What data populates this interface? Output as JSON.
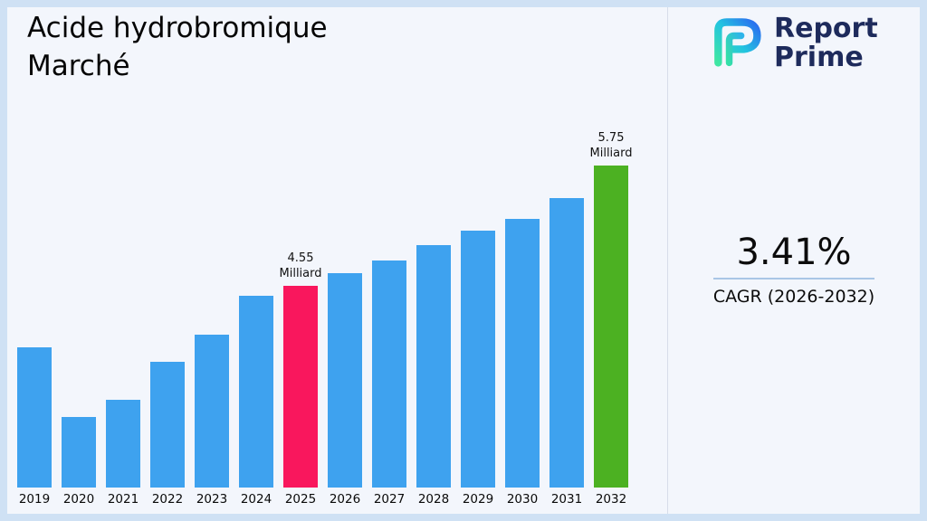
{
  "header": {
    "title_line1": "Acide hydrobromique",
    "title_line2": "Marché"
  },
  "logo": {
    "name_line1": "Report",
    "name_line2": "Prime",
    "brand_color": "#1e2b5c",
    "mark_gradient": [
      "#3ee6a3",
      "#23c4e0",
      "#2b6af0"
    ]
  },
  "stats": {
    "cagr_value": "3.41%",
    "cagr_label": "CAGR (2026-2032)"
  },
  "chart_data": {
    "type": "bar",
    "title": "Acide hydrobromique Marché",
    "categories": [
      "2019",
      "2020",
      "2021",
      "2022",
      "2023",
      "2024",
      "2025",
      "2026",
      "2027",
      "2028",
      "2029",
      "2030",
      "2031",
      "2032"
    ],
    "values": [
      3.93,
      3.24,
      3.41,
      3.79,
      4.06,
      4.45,
      4.55,
      4.67,
      4.8,
      4.95,
      5.1,
      5.22,
      5.42,
      5.75
    ],
    "unit": "Milliard",
    "annotations": [
      {
        "category": "2025",
        "value": "4.55",
        "unit": "Milliard"
      },
      {
        "category": "2032",
        "value": "5.75",
        "unit": "Milliard"
      }
    ],
    "bar_colors": {
      "default": "#3ea2ef",
      "2025": "#f9175d",
      "2032": "#4cb122"
    },
    "xlabel": "",
    "ylabel": "",
    "ylim": [
      0,
      6
    ],
    "axes_visible": false,
    "grid": false,
    "legend": "none"
  }
}
